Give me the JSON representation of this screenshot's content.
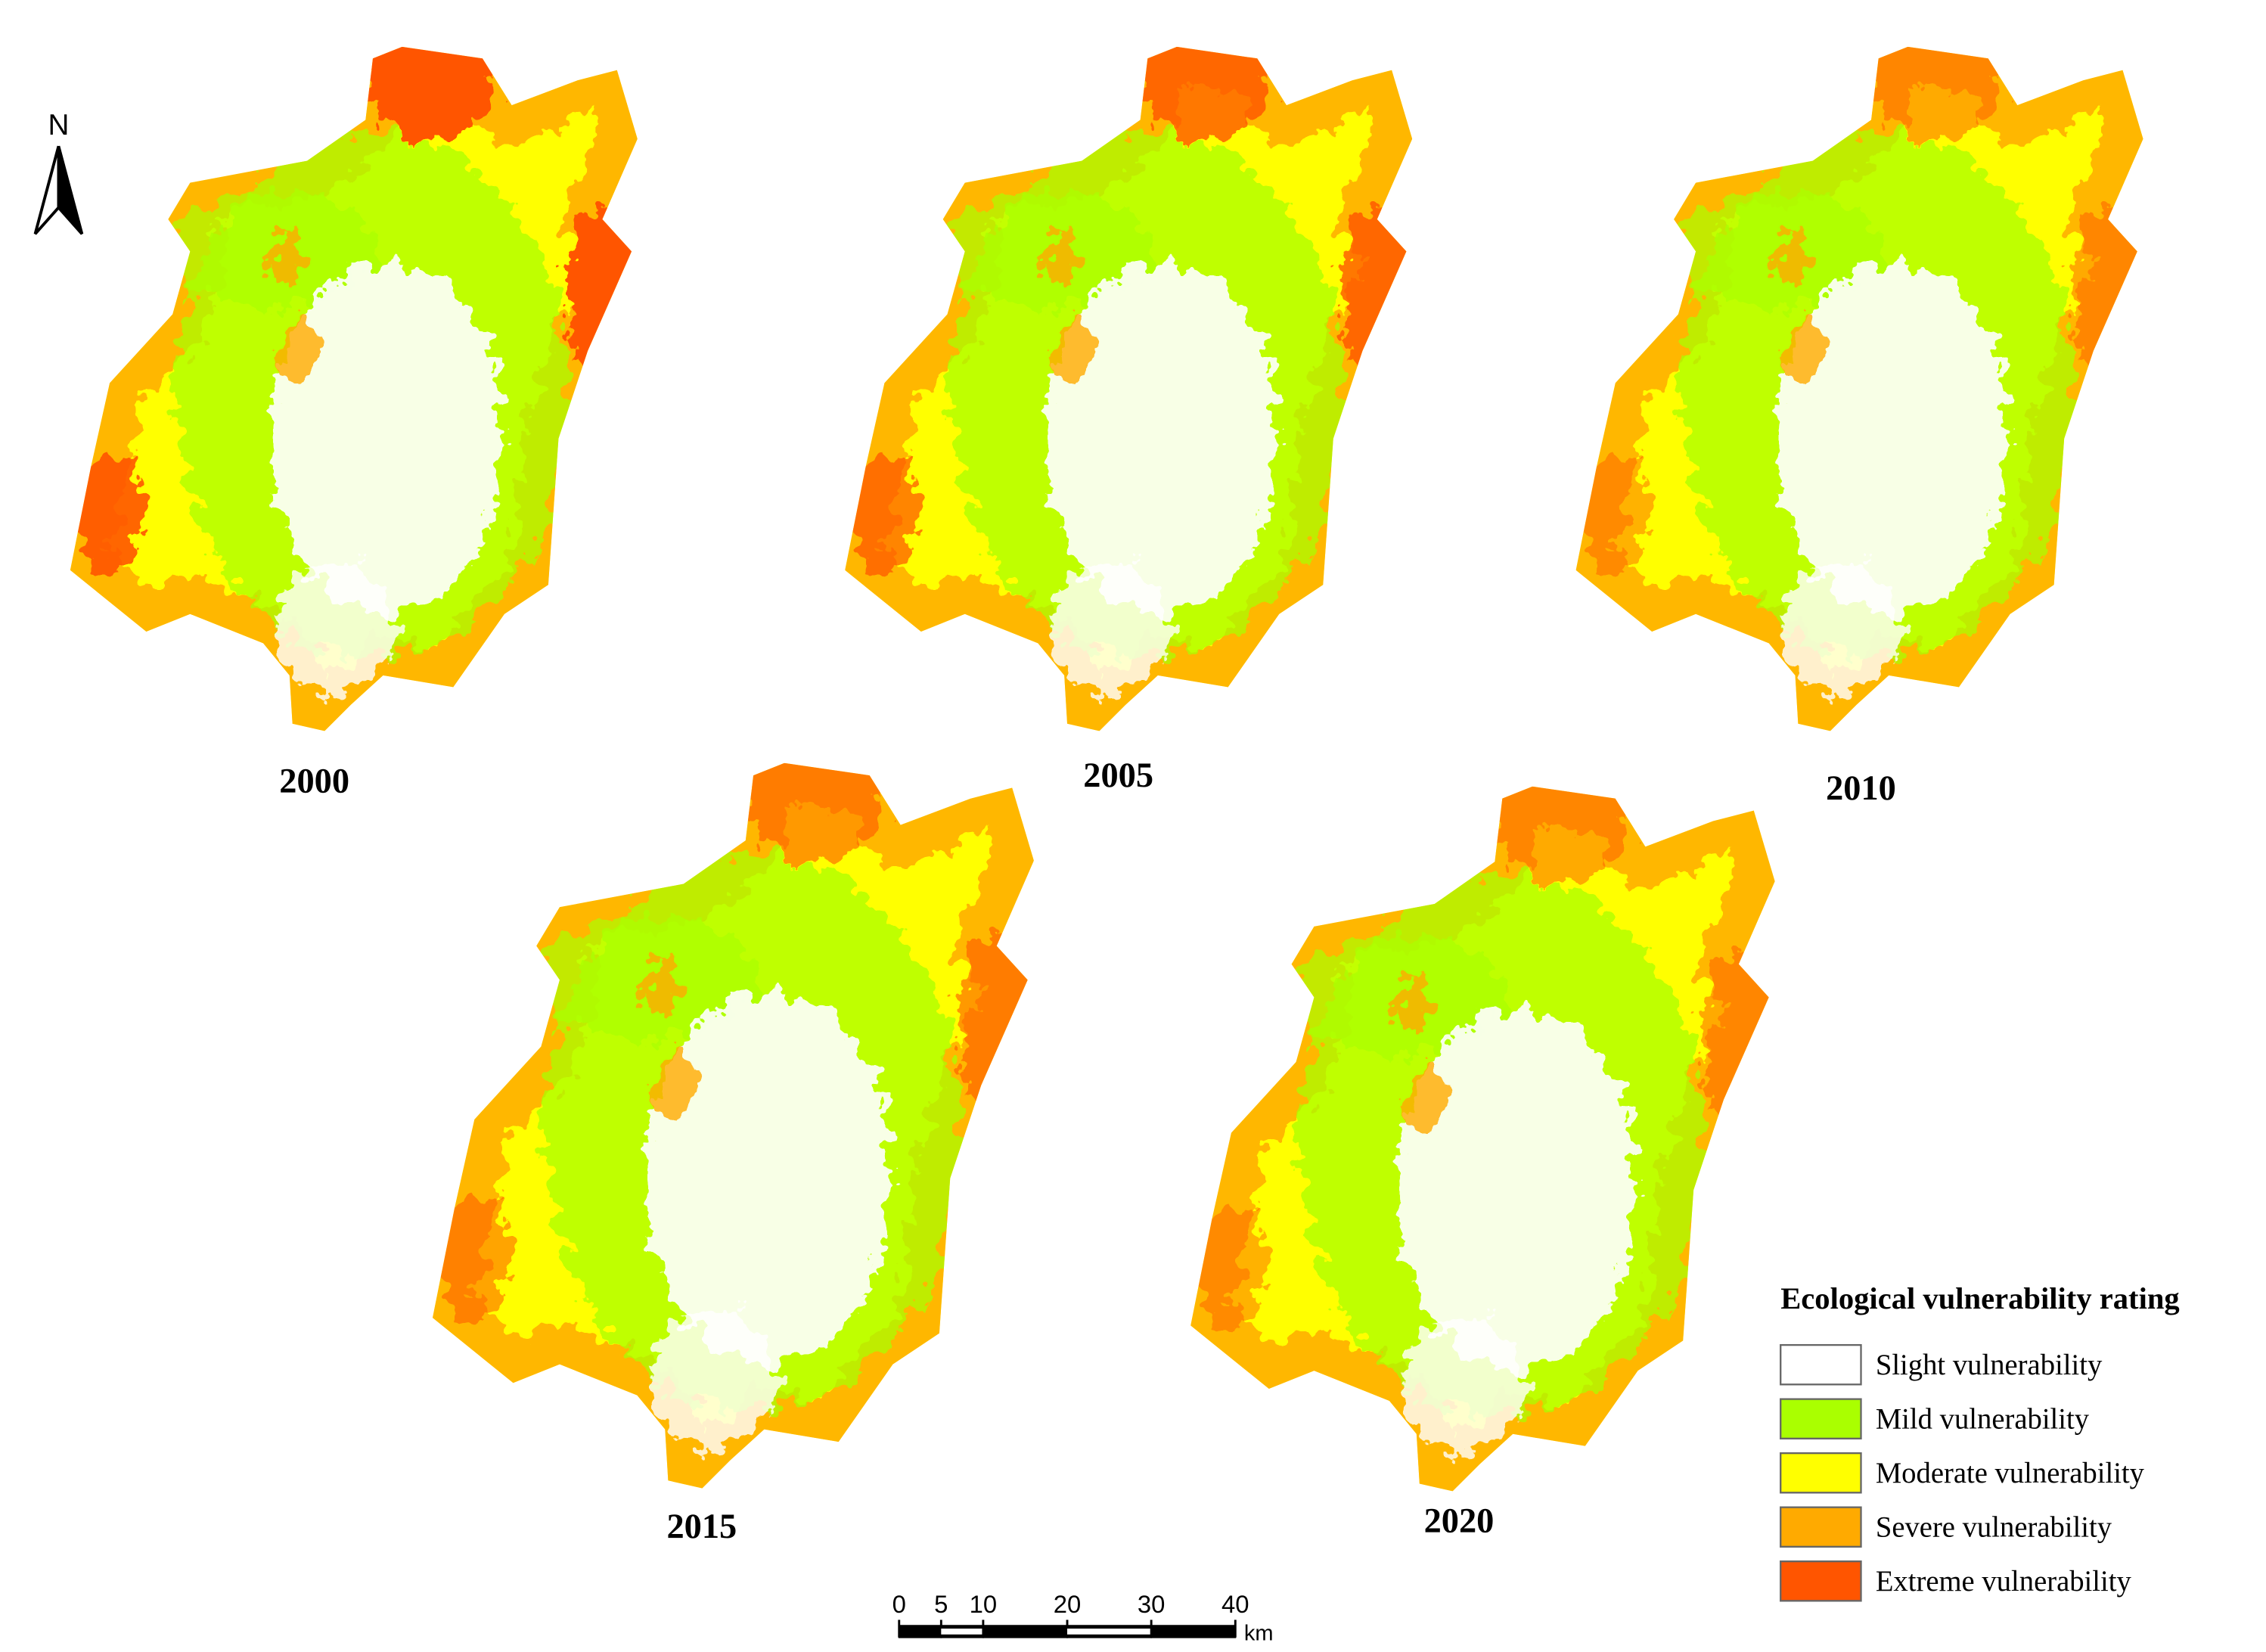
{
  "north_arrow": {
    "label": "N"
  },
  "panels": [
    {
      "label": "2000"
    },
    {
      "label": "2005"
    },
    {
      "label": "2010"
    },
    {
      "label": "2015"
    },
    {
      "label": "2020"
    }
  ],
  "legend": {
    "title": "Ecological vulnerability rating",
    "items": [
      {
        "label": "Slight vulnerability",
        "color": "#ffffff"
      },
      {
        "label": "Mild vulnerability",
        "color": "#aaff00"
      },
      {
        "label": "Moderate vulnerability",
        "color": "#ffff00"
      },
      {
        "label": "Severe vulnerability",
        "color": "#ffaa00"
      },
      {
        "label": "Extreme vulnerability",
        "color": "#ff5500"
      }
    ]
  },
  "scale_bar": {
    "ticks": [
      0,
      5,
      10,
      20,
      30,
      40
    ],
    "unit": "km"
  }
}
